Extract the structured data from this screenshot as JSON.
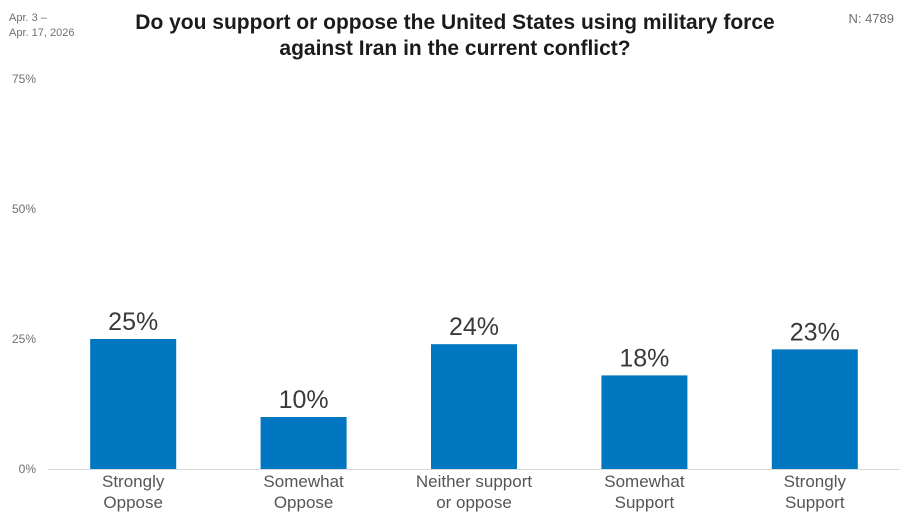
{
  "header": {
    "date_line1": "Apr. 3 –",
    "date_line2": "Apr. 17, 2026",
    "title": "Do you support or oppose the United States using military force against Iran in the current conflict?",
    "n_label": "N: 4789"
  },
  "colors": {
    "bar": "#0077c0",
    "axis_text": "#6f6f6f",
    "category_text": "#555555",
    "value_text": "#3a3a3a",
    "baseline": "#d9d9d9"
  },
  "chart_data": {
    "type": "bar",
    "title": "Do you support or oppose the United States using military force against Iran in the current conflict?",
    "xlabel": "",
    "ylabel": "",
    "ylim": [
      0,
      75
    ],
    "yticks": [
      0,
      25,
      50,
      75
    ],
    "ytick_labels": [
      "0%",
      "25%",
      "50%",
      "75%"
    ],
    "grid": false,
    "legend": "none",
    "categories": [
      [
        "Strongly",
        "Oppose"
      ],
      [
        "Somewhat",
        "Oppose"
      ],
      [
        "Neither support",
        "or oppose"
      ],
      [
        "Somewhat",
        "Support"
      ],
      [
        "Strongly",
        "Support"
      ]
    ],
    "values": [
      25,
      10,
      24,
      18,
      23
    ],
    "value_labels": [
      "25%",
      "10%",
      "24%",
      "18%",
      "23%"
    ]
  }
}
